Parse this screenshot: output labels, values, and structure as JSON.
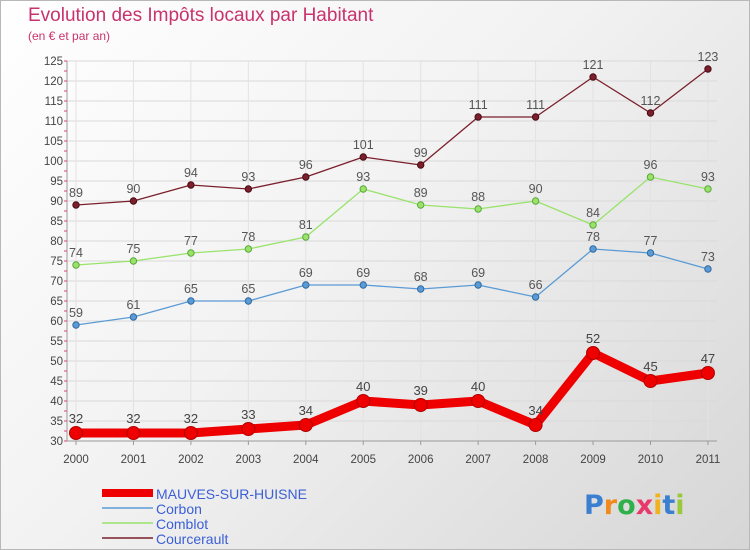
{
  "title": "Evolution des Impôts locaux par Habitant",
  "subtitle": "(en € et par an)",
  "logo_text": "Proxiti",
  "chart_data": {
    "type": "line",
    "title": "Evolution des Impôts locaux par Habitant",
    "subtitle": "(en € et par an)",
    "xlabel": "",
    "ylabel": "",
    "x": [
      "2000",
      "2001",
      "2002",
      "2003",
      "2004",
      "2005",
      "2006",
      "2007",
      "2008",
      "2009",
      "2010",
      "2011"
    ],
    "ylim": [
      30,
      125
    ],
    "yticks": [
      30,
      35,
      40,
      45,
      50,
      55,
      60,
      65,
      70,
      75,
      80,
      85,
      90,
      95,
      100,
      105,
      110,
      115,
      120,
      125
    ],
    "grid": true,
    "legend_position": "bottom-left",
    "series": [
      {
        "name": "MAUVES-SUR-HUISNE",
        "color": "#ee0000",
        "values": [
          32,
          32,
          32,
          33,
          34,
          40,
          39,
          40,
          34,
          52,
          45,
          47
        ]
      },
      {
        "name": "Corbon",
        "color": "#5b9bd5",
        "values": [
          59,
          61,
          65,
          65,
          69,
          69,
          68,
          69,
          66,
          78,
          77,
          73
        ]
      },
      {
        "name": "Comblot",
        "color": "#99e36b",
        "values": [
          74,
          75,
          77,
          78,
          81,
          93,
          89,
          88,
          90,
          84,
          96,
          93
        ]
      },
      {
        "name": "Courcerault",
        "color": "#7a1f2b",
        "values": [
          89,
          90,
          94,
          93,
          96,
          101,
          99,
          111,
          111,
          121,
          112,
          123
        ]
      }
    ]
  }
}
